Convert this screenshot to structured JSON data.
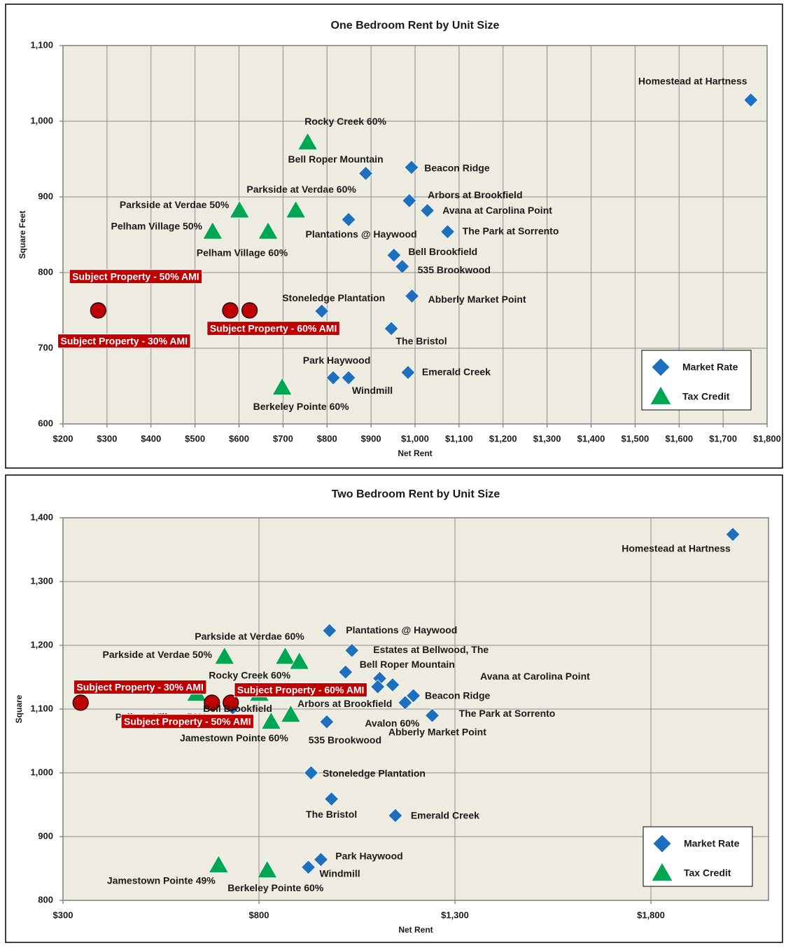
{
  "chart_data": [
    {
      "type": "scatter",
      "title": "One Bedroom Rent by Unit Size",
      "xlabel": "Net Rent",
      "ylabel": "Square Feet",
      "xlim": [
        200,
        1800
      ],
      "ylim": [
        600,
        1100
      ],
      "xticks": [
        {
          "value": 200,
          "label": "$200"
        },
        {
          "value": 300,
          "label": "$300"
        },
        {
          "value": 400,
          "label": "$400"
        },
        {
          "value": 500,
          "label": "$500"
        },
        {
          "value": 600,
          "label": "$600"
        },
        {
          "value": 700,
          "label": "$700"
        },
        {
          "value": 800,
          "label": "$800"
        },
        {
          "value": 900,
          "label": "$900"
        },
        {
          "value": 1000,
          "label": "$1,000"
        },
        {
          "value": 1100,
          "label": "$1,100"
        },
        {
          "value": 1200,
          "label": "$1,200"
        },
        {
          "value": 1300,
          "label": "$1,300"
        },
        {
          "value": 1400,
          "label": "$1,400"
        },
        {
          "value": 1500,
          "label": "$1,500"
        },
        {
          "value": 1600,
          "label": "$1,600"
        },
        {
          "value": 1700,
          "label": "$1,700"
        },
        {
          "value": 1800,
          "label": "$1,800"
        }
      ],
      "yticks": [
        600,
        700,
        800,
        900,
        {
          "value": 1000,
          "label": "1,000"
        },
        {
          "value": 1100,
          "label": "1,100"
        }
      ],
      "grid": true,
      "legend": "lower right",
      "series": [
        {
          "name": "Market Rate",
          "color": "#1f6fbf",
          "marker": "diamond",
          "x": [
            1763,
            992,
            888,
            987,
            1028,
            849,
            1074,
            952,
            971,
            993,
            788,
            946,
            984,
            814,
            849
          ],
          "values": [
            1028,
            939,
            931,
            895,
            882,
            870,
            854,
            823,
            808,
            769,
            749,
            726,
            668,
            661,
            661
          ],
          "labels": [
            "Homestead at Hartness",
            "Beacon Ridge",
            "Bell Roper Mountain",
            "Arbors at Brookfield",
            "Avana at Carolina Point",
            "Plantations @ Haywood",
            "The Park at Sorrento",
            "Bell Brookfield",
            "535 Brookwood",
            "Abberly Market Point",
            "Stoneledge Plantation",
            "The Bristol",
            "Emerald Creek",
            "Park Haywood",
            "Windmill"
          ]
        },
        {
          "name": "Tax Credit",
          "color": "#00a651",
          "marker": "triangle",
          "x": [
            756,
            601,
            729,
            540,
            666,
            698
          ],
          "values": [
            972,
            882,
            882,
            854,
            854,
            648
          ],
          "labels": [
            "Rocky Creek 60%",
            "Parkside at Verdae 50%",
            "Parkside at Verdae 60%",
            "Pelham Village 50%",
            "Pelham Village 60%",
            "Berkeley Pointe 60%"
          ]
        },
        {
          "color": "#c00000",
          "marker": "circle",
          "x": [
            280,
            580,
            624
          ],
          "values": [
            750,
            750,
            750
          ],
          "labels": [
            "Subject Property - 30% AMI",
            "Subject Property - 50% AMI",
            "Subject Property - 60% AMI"
          ]
        }
      ]
    },
    {
      "type": "scatter",
      "title": "Two Bedroom Rent by Unit Size",
      "xlabel": "Net Rent",
      "ylabel": "Square",
      "xlim": [
        300,
        2100
      ],
      "ylim": [
        800,
        1400
      ],
      "xticks": [
        {
          "value": 300,
          "label": "$300"
        },
        {
          "value": 800,
          "label": "$800"
        },
        {
          "value": 1300,
          "label": "$1,300"
        },
        {
          "value": 1800,
          "label": "$1,800"
        }
      ],
      "yticks": [
        800,
        900,
        {
          "value": 1000,
          "label": "1,000"
        },
        {
          "value": 1100,
          "label": "1,100"
        },
        {
          "value": 1200,
          "label": "1,200"
        },
        {
          "value": 1300,
          "label": "1,300"
        },
        {
          "value": 1400,
          "label": "1,400"
        }
      ],
      "grid": true,
      "legend": "lower right",
      "series": [
        {
          "name": "Market Rate",
          "color": "#1f6fbf",
          "marker": "diamond",
          "x": [
            2009,
            980,
            1037,
            1021,
            1108,
            1103,
            1194,
            1173,
            1242,
            973,
            933,
            985,
            1148,
            958,
            926,
            733,
            1141
          ],
          "values": [
            1374,
            1223,
            1192,
            1158,
            1148,
            1135,
            1121,
            1110,
            1090,
            1080,
            1000,
            959,
            933,
            864,
            852,
            1102,
            1138
          ],
          "labels": [
            "Homestead at Hartness",
            "Plantations @ Haywood",
            "Estates at Bellwood, The",
            "Bell Roper Mountain",
            "Avana at Carolina Point",
            "Arbors at Brookfield",
            "Beacon Ridge",
            "Abberly Market Point",
            "The Park at Sorrento",
            "535 Brookwood",
            "Stoneledge Plantation",
            "The Bristol",
            "Emerald Creek",
            "Park Haywood",
            "Windmill",
            "Bell Brookfield",
            null
          ]
        },
        {
          "name": "Tax Credit",
          "color": "#00a651",
          "marker": "triangle",
          "x": [
            712,
            867,
            903,
            641,
            801,
            881,
            831,
            697,
            821
          ],
          "values": [
            1182,
            1182,
            1174,
            1124,
            1124,
            1091,
            1080,
            855,
            847
          ],
          "labels": [
            "Parkside at Verdae 50%",
            "Parkside at Verdae 60%",
            "Rocky Creek 60%",
            "Pelham Village 50%",
            null,
            "Avalon 60%",
            "Jamestown Pointe 60%",
            "Jamestown Pointe 49%",
            "Berkeley Pointe 60%"
          ]
        },
        {
          "color": "#c00000",
          "marker": "circle",
          "x": [
            345,
            680,
            728
          ],
          "values": [
            1110,
            1110,
            1110
          ],
          "labels": [
            "Subject Property - 30% AMI",
            "Subject Property - 50% AMI",
            "Subject Property - 60% AMI"
          ]
        }
      ]
    }
  ]
}
